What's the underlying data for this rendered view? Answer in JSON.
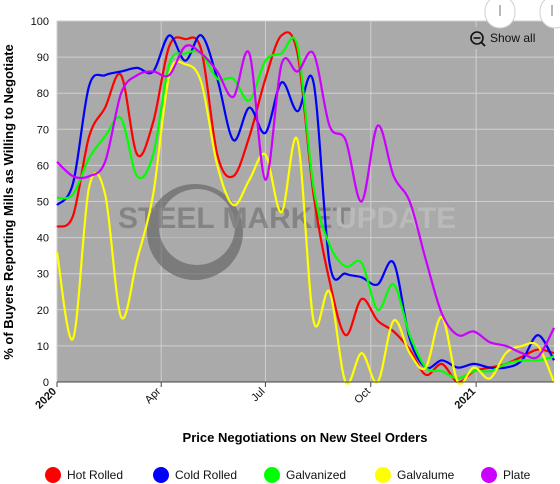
{
  "chart_data": {
    "type": "line",
    "title": "",
    "xlabel": "Price Negotiations on New Steel Orders",
    "ylabel": "% of Buyers Reporting Mills as Willing to Negotiate",
    "ylim": [
      0,
      100
    ],
    "yticks": [
      "0",
      "10",
      "20",
      "30",
      "40",
      "50",
      "60",
      "70",
      "80",
      "90",
      "100"
    ],
    "xticks": [
      {
        "label": "2020",
        "x": "2020-01-01",
        "bold": true
      },
      {
        "label": "Apr",
        "x": "2020-04-01",
        "bold": false
      },
      {
        "label": "Jul",
        "x": "2020-07-01",
        "bold": false
      },
      {
        "label": "Oct",
        "x": "2020-10-01",
        "bold": false
      },
      {
        "label": "2021",
        "x": "2021-01-01",
        "bold": true
      }
    ],
    "xrange": [
      "2020-01-01",
      "2021-03-10"
    ],
    "grid": true,
    "legend_position": "bottom",
    "series": [
      {
        "name": "Hot Rolled",
        "color": "#ff0000",
        "points": [
          [
            "2020-01-01",
            43
          ],
          [
            "2020-01-15",
            46
          ],
          [
            "2020-01-29",
            68
          ],
          [
            "2020-02-12",
            76
          ],
          [
            "2020-02-26",
            85
          ],
          [
            "2020-03-11",
            63
          ],
          [
            "2020-03-25",
            72
          ],
          [
            "2020-04-08",
            93
          ],
          [
            "2020-04-22",
            95
          ],
          [
            "2020-05-06",
            92
          ],
          [
            "2020-05-20",
            63
          ],
          [
            "2020-06-03",
            57
          ],
          [
            "2020-06-17",
            68
          ],
          [
            "2020-07-01",
            84
          ],
          [
            "2020-07-15",
            96
          ],
          [
            "2020-07-29",
            91
          ],
          [
            "2020-08-12",
            52
          ],
          [
            "2020-08-26",
            28
          ],
          [
            "2020-09-09",
            13
          ],
          [
            "2020-09-23",
            23
          ],
          [
            "2020-10-07",
            17
          ],
          [
            "2020-10-21",
            14
          ],
          [
            "2020-11-04",
            9
          ],
          [
            "2020-11-18",
            2
          ],
          [
            "2020-12-02",
            5
          ],
          [
            "2020-12-16",
            0
          ],
          [
            "2020-12-30",
            3
          ],
          [
            "2021-01-13",
            4
          ],
          [
            "2021-01-27",
            5
          ],
          [
            "2021-02-10",
            7
          ],
          [
            "2021-02-24",
            9
          ],
          [
            "2021-03-10",
            8
          ]
        ]
      },
      {
        "name": "Cold Rolled",
        "color": "#0000ff",
        "points": [
          [
            "2020-01-01",
            49
          ],
          [
            "2020-01-15",
            55
          ],
          [
            "2020-01-29",
            82
          ],
          [
            "2020-02-12",
            85
          ],
          [
            "2020-02-26",
            86
          ],
          [
            "2020-03-11",
            87
          ],
          [
            "2020-03-25",
            86
          ],
          [
            "2020-04-08",
            96
          ],
          [
            "2020-04-22",
            89
          ],
          [
            "2020-05-06",
            96
          ],
          [
            "2020-05-20",
            84
          ],
          [
            "2020-06-03",
            67
          ],
          [
            "2020-06-17",
            76
          ],
          [
            "2020-07-01",
            69
          ],
          [
            "2020-07-15",
            83
          ],
          [
            "2020-07-29",
            75
          ],
          [
            "2020-08-12",
            83
          ],
          [
            "2020-08-26",
            33
          ],
          [
            "2020-09-09",
            30
          ],
          [
            "2020-09-23",
            29
          ],
          [
            "2020-10-07",
            27
          ],
          [
            "2020-10-21",
            33
          ],
          [
            "2020-11-04",
            12
          ],
          [
            "2020-11-18",
            4
          ],
          [
            "2020-12-02",
            6
          ],
          [
            "2020-12-16",
            4
          ],
          [
            "2020-12-30",
            5
          ],
          [
            "2021-01-13",
            4
          ],
          [
            "2021-01-27",
            4
          ],
          [
            "2021-02-10",
            6
          ],
          [
            "2021-02-24",
            13
          ],
          [
            "2021-03-10",
            6
          ]
        ]
      },
      {
        "name": "Galvanized",
        "color": "#00ff00",
        "points": [
          [
            "2020-01-01",
            51
          ],
          [
            "2020-01-15",
            52
          ],
          [
            "2020-01-29",
            62
          ],
          [
            "2020-02-12",
            68
          ],
          [
            "2020-02-26",
            73
          ],
          [
            "2020-03-11",
            57
          ],
          [
            "2020-03-25",
            63
          ],
          [
            "2020-04-08",
            88
          ],
          [
            "2020-04-22",
            91
          ],
          [
            "2020-05-06",
            91
          ],
          [
            "2020-05-20",
            84
          ],
          [
            "2020-06-03",
            84
          ],
          [
            "2020-06-17",
            78
          ],
          [
            "2020-07-01",
            89
          ],
          [
            "2020-07-15",
            91
          ],
          [
            "2020-07-29",
            93
          ],
          [
            "2020-08-12",
            54
          ],
          [
            "2020-08-26",
            38
          ],
          [
            "2020-09-09",
            32
          ],
          [
            "2020-09-23",
            33
          ],
          [
            "2020-10-07",
            20
          ],
          [
            "2020-10-21",
            27
          ],
          [
            "2020-11-04",
            13
          ],
          [
            "2020-11-18",
            4
          ],
          [
            "2020-12-02",
            3
          ],
          [
            "2020-12-16",
            1
          ],
          [
            "2020-12-30",
            3
          ],
          [
            "2021-01-13",
            3
          ],
          [
            "2021-01-27",
            5
          ],
          [
            "2021-02-10",
            6
          ],
          [
            "2021-02-24",
            6
          ],
          [
            "2021-03-10",
            7
          ]
        ]
      },
      {
        "name": "Galvalume",
        "color": "#ffff00",
        "points": [
          [
            "2020-01-01",
            36
          ],
          [
            "2020-01-15",
            12
          ],
          [
            "2020-01-29",
            54
          ],
          [
            "2020-02-12",
            52
          ],
          [
            "2020-02-26",
            18
          ],
          [
            "2020-03-11",
            34
          ],
          [
            "2020-03-25",
            52
          ],
          [
            "2020-04-08",
            85
          ],
          [
            "2020-04-22",
            88
          ],
          [
            "2020-05-06",
            83
          ],
          [
            "2020-05-20",
            60
          ],
          [
            "2020-06-03",
            49
          ],
          [
            "2020-06-17",
            56
          ],
          [
            "2020-07-01",
            63
          ],
          [
            "2020-07-15",
            47
          ],
          [
            "2020-07-29",
            67
          ],
          [
            "2020-08-12",
            17
          ],
          [
            "2020-08-26",
            25
          ],
          [
            "2020-09-09",
            0
          ],
          [
            "2020-09-23",
            8
          ],
          [
            "2020-10-07",
            0
          ],
          [
            "2020-10-21",
            17
          ],
          [
            "2020-11-04",
            8
          ],
          [
            "2020-11-18",
            4
          ],
          [
            "2020-12-02",
            18
          ],
          [
            "2020-12-16",
            0
          ],
          [
            "2020-12-30",
            4
          ],
          [
            "2021-01-13",
            1
          ],
          [
            "2021-01-27",
            8
          ],
          [
            "2021-02-10",
            10
          ],
          [
            "2021-02-24",
            10
          ],
          [
            "2021-03-10",
            0
          ]
        ]
      },
      {
        "name": "Plate",
        "color": "#cc00ff",
        "points": [
          [
            "2020-01-01",
            61
          ],
          [
            "2020-01-15",
            57
          ],
          [
            "2020-01-29",
            57
          ],
          [
            "2020-02-12",
            61
          ],
          [
            "2020-02-26",
            80
          ],
          [
            "2020-03-11",
            85
          ],
          [
            "2020-03-25",
            86
          ],
          [
            "2020-04-08",
            85
          ],
          [
            "2020-04-22",
            93
          ],
          [
            "2020-05-06",
            91
          ],
          [
            "2020-05-20",
            86
          ],
          [
            "2020-06-03",
            79
          ],
          [
            "2020-06-17",
            91
          ],
          [
            "2020-07-01",
            56
          ],
          [
            "2020-07-15",
            88
          ],
          [
            "2020-07-29",
            86
          ],
          [
            "2020-08-12",
            91
          ],
          [
            "2020-08-26",
            71
          ],
          [
            "2020-09-09",
            67
          ],
          [
            "2020-09-23",
            50
          ],
          [
            "2020-10-07",
            71
          ],
          [
            "2020-10-21",
            57
          ],
          [
            "2020-11-04",
            50
          ],
          [
            "2020-11-18",
            34
          ],
          [
            "2020-12-02",
            19
          ],
          [
            "2020-12-16",
            13
          ],
          [
            "2020-12-30",
            14
          ],
          [
            "2021-01-13",
            11
          ],
          [
            "2021-01-27",
            10
          ],
          [
            "2021-02-10",
            8
          ],
          [
            "2021-02-24",
            7
          ],
          [
            "2021-03-10",
            15
          ]
        ]
      }
    ]
  },
  "watermark": {
    "text_left": "STEEL MARKET",
    "text_right": "UPDATE"
  },
  "controls": {
    "show_all_label": "Show all"
  },
  "colors": {
    "plot_background": "#aaaaaa",
    "grid": "#cfcfcf"
  }
}
